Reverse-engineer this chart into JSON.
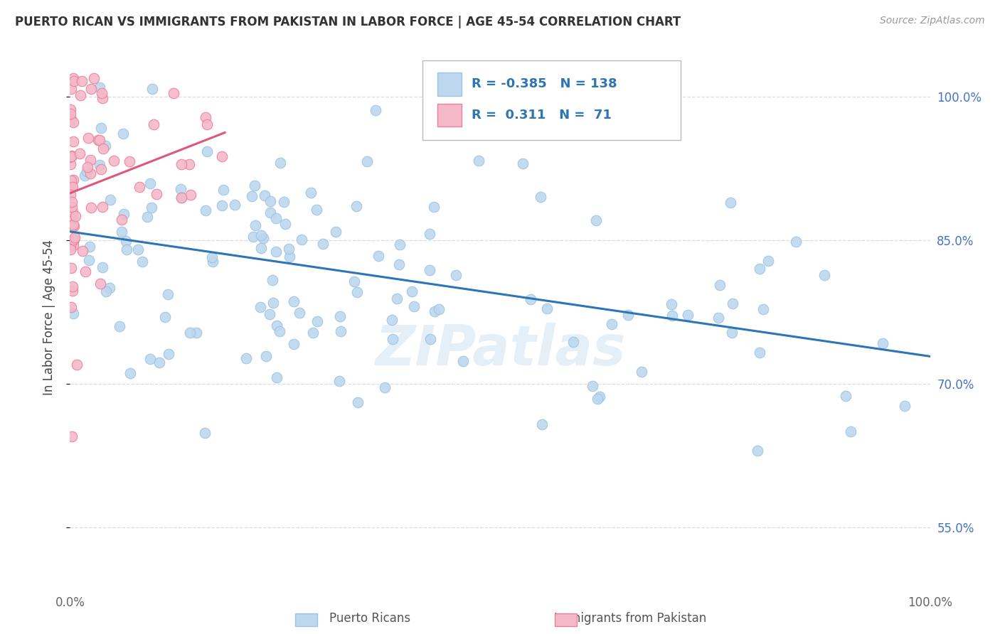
{
  "title": "PUERTO RICAN VS IMMIGRANTS FROM PAKISTAN IN LABOR FORCE | AGE 45-54 CORRELATION CHART",
  "source": "Source: ZipAtlas.com",
  "ylabel": "In Labor Force | Age 45-54",
  "watermark": "ZIPatlas",
  "blue_R": -0.385,
  "blue_N": 138,
  "pink_R": 0.311,
  "pink_N": 71,
  "blue_color": "#bdd7ee",
  "blue_edge": "#9dc3e6",
  "pink_color": "#f4b8c8",
  "pink_edge": "#e8829a",
  "blue_line_color": "#2e75b6",
  "pink_line_color": "#e05878",
  "y_tick_vals": [
    0.55,
    0.7,
    0.85,
    1.0
  ],
  "y_tick_labels": [
    "55.0%",
    "70.0%",
    "85.0%",
    "100.0%"
  ],
  "xlim": [
    0.0,
    1.0
  ],
  "ylim": [
    0.485,
    1.055
  ],
  "grid_color": "#dddddd",
  "legend_text_color": "#2e75b6",
  "legend_box_color": "#ffffff",
  "legend_border_color": "#cccccc"
}
